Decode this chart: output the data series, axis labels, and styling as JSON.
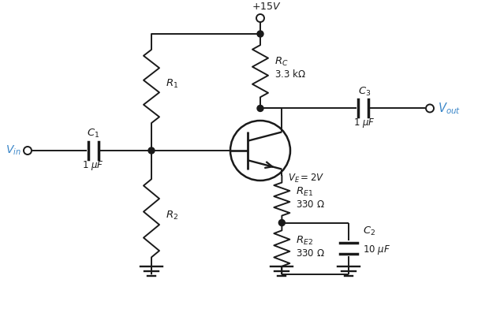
{
  "background_color": "#ffffff",
  "line_color": "#1a1a1a",
  "blue_color": "#3a86c8",
  "figsize": [
    6.39,
    4.11
  ],
  "dpi": 100
}
